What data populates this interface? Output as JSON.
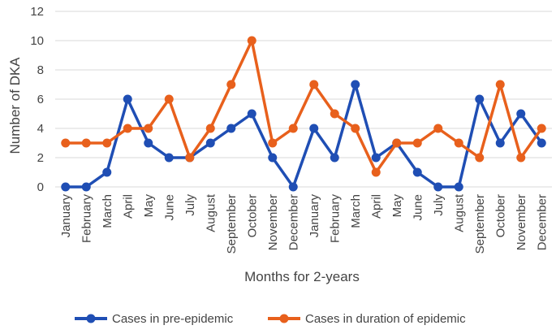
{
  "chart_data": {
    "type": "line",
    "categories": [
      "January",
      "February",
      "March",
      "April",
      "May",
      "June",
      "July",
      "August",
      "September",
      "October",
      "November",
      "December",
      "January",
      "February",
      "March",
      "April",
      "May",
      "June",
      "July",
      "August",
      "September",
      "October",
      "November",
      "December"
    ],
    "series": [
      {
        "name": "Cases in pre-epidemic",
        "color": "#1f4eb4",
        "values": [
          0,
          0,
          1,
          6,
          3,
          2,
          2,
          3,
          4,
          5,
          2,
          0,
          4,
          2,
          7,
          2,
          3,
          1,
          0,
          0,
          6,
          3,
          5,
          3
        ]
      },
      {
        "name": "Cases in duration of epidemic",
        "color": "#e8601c",
        "values": [
          3,
          3,
          3,
          4,
          4,
          6,
          2,
          4,
          7,
          10,
          3,
          4,
          7,
          5,
          4,
          1,
          3,
          3,
          4,
          3,
          2,
          7,
          2,
          4
        ]
      }
    ],
    "title": "",
    "xlabel": "Months for 2-years",
    "ylabel": "Number of DKA",
    "ylim": [
      0,
      12
    ],
    "yticks": [
      0,
      2,
      4,
      6,
      8,
      10,
      12
    ],
    "grid": true,
    "legend_position": "bottom"
  }
}
